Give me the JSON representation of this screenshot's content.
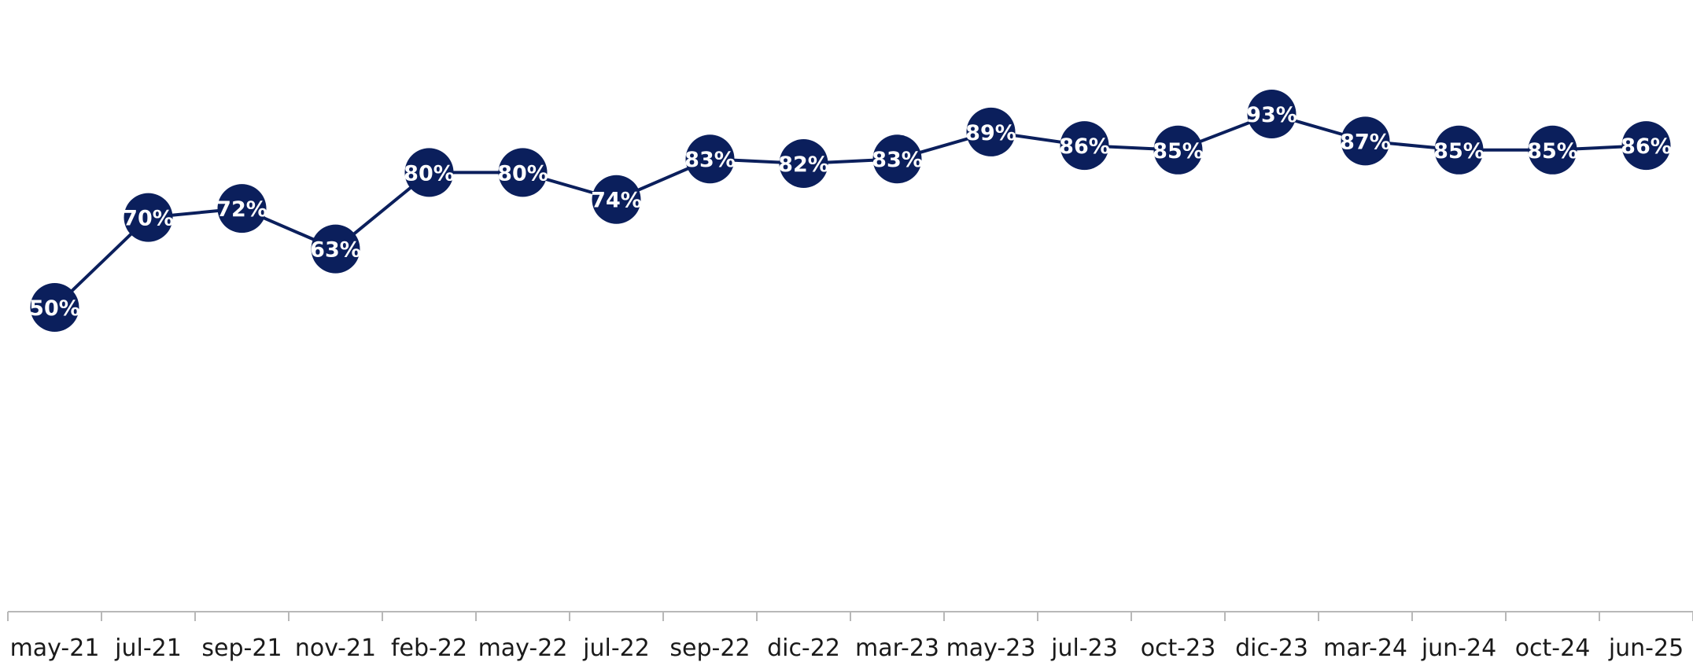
{
  "chart_data": {
    "type": "line",
    "title": "",
    "xlabel": "",
    "ylabel": "",
    "categories": [
      "may-21",
      "jul-21",
      "sep-21",
      "nov-21",
      "feb-22",
      "may-22",
      "jul-22",
      "sep-22",
      "dic-22",
      "mar-23",
      "may-23",
      "jul-23",
      "oct-23",
      "dic-23",
      "mar-24",
      "jun-24",
      "oct-24",
      "jun-25"
    ],
    "series": [
      {
        "values": [
          50,
          70,
          72,
          63,
          80,
          80,
          74,
          83,
          82,
          83,
          89,
          86,
          85,
          93,
          87,
          85,
          85,
          86
        ],
        "labels": [
          "50%",
          "70%",
          "72%",
          "63%",
          "80%",
          "80%",
          "74%",
          "83%",
          "82%",
          "83%",
          "89%",
          "86%",
          "85%",
          "93%",
          "87%",
          "85%",
          "85%",
          "86%"
        ],
        "error_margin": 5
      }
    ],
    "ylim": [
      0,
      100
    ],
    "grid": false,
    "y_axis_visible": false,
    "colors": {
      "line": "#0b1f5c",
      "marker": "#0b1f5c",
      "error_bar": "#4a78c8",
      "label_text": "#ffffff",
      "axis": "#b8b8b8",
      "tick_text": "#1a1a1a"
    }
  }
}
